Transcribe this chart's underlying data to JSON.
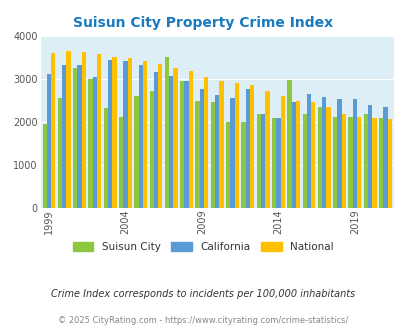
{
  "title": "Suisun City Property Crime Index",
  "years": [
    1999,
    2000,
    2001,
    2002,
    2003,
    2004,
    2005,
    2006,
    2007,
    2008,
    2009,
    2010,
    2011,
    2012,
    2013,
    2014,
    2015,
    2016,
    2017,
    2018,
    2019,
    2020,
    2021
  ],
  "suisun_city": [
    1960,
    2560,
    3270,
    3010,
    2340,
    2130,
    2600,
    2730,
    3510,
    2960,
    2500,
    2480,
    2010,
    2000,
    2190,
    2090,
    2990,
    2190,
    2350,
    2130,
    2110,
    2200,
    2090
  ],
  "california": [
    3110,
    3320,
    3340,
    3060,
    3440,
    3420,
    3330,
    3170,
    3070,
    2960,
    2760,
    2640,
    2570,
    2760,
    2200,
    2090,
    2480,
    2650,
    2580,
    2540,
    2530,
    2390,
    2360
  ],
  "national": [
    3600,
    3650,
    3640,
    3590,
    3520,
    3500,
    3430,
    3360,
    3260,
    3200,
    3050,
    2950,
    2910,
    2870,
    2720,
    2600,
    2500,
    2460,
    2360,
    2200,
    2110,
    2090,
    2080
  ],
  "color_suisun": "#8dc63f",
  "color_california": "#5b9bd5",
  "color_national": "#ffc000",
  "bg_color": "#ddeef6",
  "title_color": "#1a7abf",
  "subtitle": "Crime Index corresponds to incidents per 100,000 inhabitants",
  "footer": "© 2025 CityRating.com - https://www.cityrating.com/crime-statistics/",
  "ylim": [
    0,
    4000
  ],
  "yticks": [
    0,
    1000,
    2000,
    3000,
    4000
  ]
}
